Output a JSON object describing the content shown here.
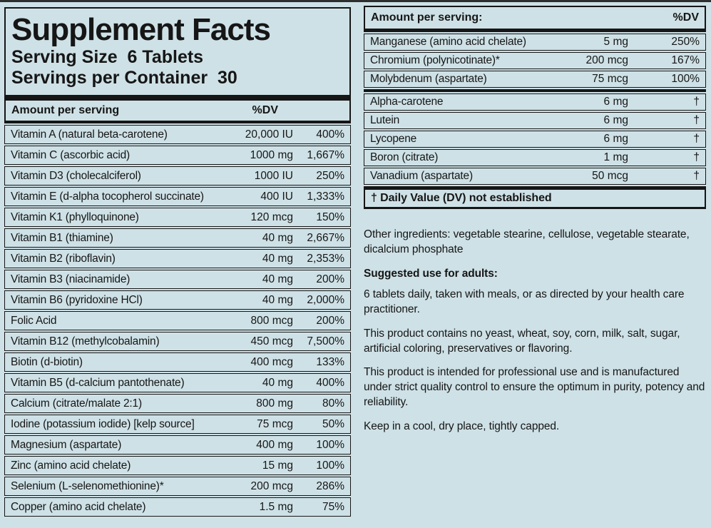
{
  "colors": {
    "background": "#cee1e6",
    "ink": "#161616"
  },
  "left_panel": {
    "title": "Supplement Facts",
    "serving_size": "Serving Size  6 Tablets",
    "servings_per_container": "Servings per Container  30",
    "header": {
      "amount": "Amount per serving",
      "dv": "%DV"
    },
    "rows": [
      {
        "label": "Vitamin A (natural beta-carotene)",
        "amount": "20,000 IU",
        "dv": "400%"
      },
      {
        "label": "Vitamin C (ascorbic acid)",
        "amount": "1000 mg",
        "dv": "1,667%"
      },
      {
        "label": "Vitamin D3 (cholecalciferol)",
        "amount": "1000 IU",
        "dv": "250%"
      },
      {
        "label": "Vitamin E (d-alpha tocopherol succinate)",
        "amount": "400 IU",
        "dv": "1,333%"
      },
      {
        "label": "Vitamin K1 (phylloquinone)",
        "amount": "120 mcg",
        "dv": "150%"
      },
      {
        "label": "Vitamin B1 (thiamine)",
        "amount": "40 mg",
        "dv": "2,667%"
      },
      {
        "label": "Vitamin B2 (riboflavin)",
        "amount": "40 mg",
        "dv": "2,353%"
      },
      {
        "label": "Vitamin B3 (niacinamide)",
        "amount": "40 mg",
        "dv": "200%"
      },
      {
        "label": "Vitamin B6 (pyridoxine HCl)",
        "amount": "40 mg",
        "dv": "2,000%"
      },
      {
        "label": "Folic Acid",
        "amount": "800 mcg",
        "dv": "200%"
      },
      {
        "label": "Vitamin B12 (methylcobalamin)",
        "amount": "450 mcg",
        "dv": "7,500%"
      },
      {
        "label": "Biotin (d-biotin)",
        "amount": "400 mcg",
        "dv": "133%"
      },
      {
        "label": "Vitamin B5 (d-calcium pantothenate)",
        "amount": "40 mg",
        "dv": "400%"
      },
      {
        "label": "Calcium (citrate/malate 2:1)",
        "amount": "800 mg",
        "dv": "80%"
      },
      {
        "label": "Iodine (potassium iodide) [kelp source]",
        "amount": "75 mcg",
        "dv": "50%"
      },
      {
        "label": "Magnesium (aspartate)",
        "amount": "400 mg",
        "dv": "100%"
      },
      {
        "label": "Zinc (amino acid chelate)",
        "amount": "15 mg",
        "dv": "100%"
      },
      {
        "label": "Selenium (L-selenomethionine)*",
        "amount": "200 mcg",
        "dv": "286%"
      },
      {
        "label": "Copper (amino acid chelate)",
        "amount": "1.5 mg",
        "dv": "75%"
      }
    ]
  },
  "right_panel": {
    "header": {
      "amount": "Amount per serving:",
      "dv": "%DV"
    },
    "rows_group1": [
      {
        "label": "Manganese (amino acid chelate)",
        "amount": "5 mg",
        "dv": "250%"
      },
      {
        "label": "Chromium (polynicotinate)*",
        "amount": "200 mcg",
        "dv": "167%"
      },
      {
        "label": "Molybdenum (aspartate)",
        "amount": "75 mcg",
        "dv": "100%"
      }
    ],
    "rows_group2": [
      {
        "label": "Alpha-carotene",
        "amount": "6 mg",
        "dv": "†"
      },
      {
        "label": "Lutein",
        "amount": "6 mg",
        "dv": "†"
      },
      {
        "label": "Lycopene",
        "amount": "6 mg",
        "dv": "†"
      },
      {
        "label": "Boron (citrate)",
        "amount": "1 mg",
        "dv": "†"
      },
      {
        "label": "Vanadium (aspartate)",
        "amount": "50 mcg",
        "dv": "†"
      }
    ],
    "footnote": "†  Daily Value (DV) not established",
    "other_ingredients": "Other ingredients: vegetable stearine, cellulose, vegetable stearate, dicalcium phosphate",
    "suggested_use_heading": "Suggested use for adults:",
    "paragraphs": [
      "6 tablets daily, taken with meals, or as directed by your health care practitioner.",
      "This product contains no yeast, wheat, soy, corn, milk, salt, sugar, artificial coloring, preservatives or flavoring.",
      "This product is intended for professional use and is manufactured under strict quality control to ensure the optimum in purity, potency and reliability.",
      "Keep in a cool, dry place, tightly capped."
    ]
  }
}
